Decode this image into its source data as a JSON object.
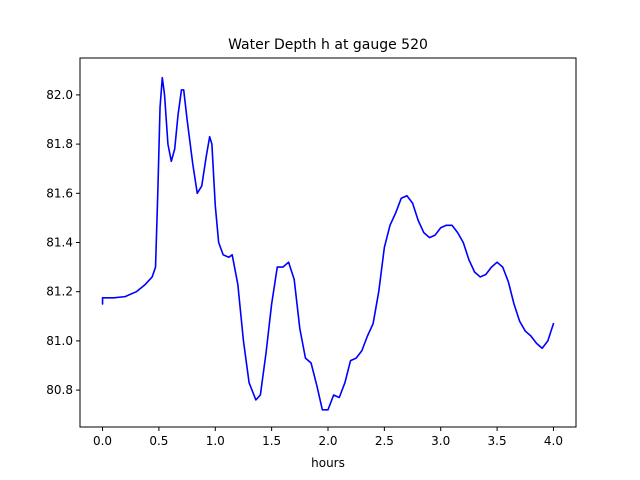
{
  "chart_data": {
    "type": "line",
    "title": "Water Depth h at gauge 520",
    "xlabel": "hours",
    "ylabel": "",
    "xlim": [
      -0.2,
      4.2
    ],
    "ylim": [
      80.65,
      82.15
    ],
    "x_ticks": [
      0.0,
      0.5,
      1.0,
      1.5,
      2.0,
      2.5,
      3.0,
      3.5,
      4.0
    ],
    "x_tick_labels": [
      "0.0",
      "0.5",
      "1.0",
      "1.5",
      "2.0",
      "2.5",
      "3.0",
      "3.5",
      "4.0"
    ],
    "y_ticks": [
      80.8,
      81.0,
      81.2,
      81.4,
      81.6,
      81.8,
      82.0
    ],
    "y_tick_labels": [
      "80.8",
      "81.0",
      "81.2",
      "81.4",
      "81.6",
      "81.8",
      "82.0"
    ],
    "grid": false,
    "series": [
      {
        "name": "",
        "color": "#0000ff",
        "points": [
          [
            0.0,
            81.15
          ],
          [
            0.0,
            81.175
          ],
          [
            0.1,
            81.175
          ],
          [
            0.2,
            81.18
          ],
          [
            0.3,
            81.2
          ],
          [
            0.38,
            81.23
          ],
          [
            0.44,
            81.26
          ],
          [
            0.47,
            81.3
          ],
          [
            0.49,
            81.6
          ],
          [
            0.51,
            81.95
          ],
          [
            0.53,
            82.07
          ],
          [
            0.55,
            82.0
          ],
          [
            0.58,
            81.8
          ],
          [
            0.61,
            81.73
          ],
          [
            0.64,
            81.78
          ],
          [
            0.67,
            81.92
          ],
          [
            0.7,
            82.02
          ],
          [
            0.72,
            82.02
          ],
          [
            0.75,
            81.9
          ],
          [
            0.8,
            81.72
          ],
          [
            0.84,
            81.6
          ],
          [
            0.88,
            81.63
          ],
          [
            0.92,
            81.75
          ],
          [
            0.95,
            81.83
          ],
          [
            0.97,
            81.8
          ],
          [
            1.0,
            81.55
          ],
          [
            1.03,
            81.4
          ],
          [
            1.07,
            81.35
          ],
          [
            1.12,
            81.34
          ],
          [
            1.15,
            81.35
          ],
          [
            1.2,
            81.23
          ],
          [
            1.25,
            81.0
          ],
          [
            1.3,
            80.83
          ],
          [
            1.36,
            80.76
          ],
          [
            1.4,
            80.78
          ],
          [
            1.45,
            80.95
          ],
          [
            1.5,
            81.15
          ],
          [
            1.55,
            81.3
          ],
          [
            1.6,
            81.3
          ],
          [
            1.65,
            81.32
          ],
          [
            1.7,
            81.25
          ],
          [
            1.75,
            81.05
          ],
          [
            1.8,
            80.93
          ],
          [
            1.85,
            80.91
          ],
          [
            1.9,
            80.82
          ],
          [
            1.95,
            80.72
          ],
          [
            2.0,
            80.72
          ],
          [
            2.05,
            80.78
          ],
          [
            2.1,
            80.77
          ],
          [
            2.15,
            80.83
          ],
          [
            2.2,
            80.92
          ],
          [
            2.25,
            80.93
          ],
          [
            2.3,
            80.96
          ],
          [
            2.35,
            81.02
          ],
          [
            2.4,
            81.07
          ],
          [
            2.45,
            81.2
          ],
          [
            2.5,
            81.38
          ],
          [
            2.55,
            81.47
          ],
          [
            2.6,
            81.52
          ],
          [
            2.65,
            81.58
          ],
          [
            2.7,
            81.59
          ],
          [
            2.75,
            81.56
          ],
          [
            2.8,
            81.49
          ],
          [
            2.85,
            81.44
          ],
          [
            2.9,
            81.42
          ],
          [
            2.95,
            81.43
          ],
          [
            3.0,
            81.46
          ],
          [
            3.05,
            81.47
          ],
          [
            3.1,
            81.47
          ],
          [
            3.15,
            81.44
          ],
          [
            3.2,
            81.4
          ],
          [
            3.25,
            81.33
          ],
          [
            3.3,
            81.28
          ],
          [
            3.35,
            81.26
          ],
          [
            3.4,
            81.27
          ],
          [
            3.45,
            81.3
          ],
          [
            3.5,
            81.32
          ],
          [
            3.55,
            81.3
          ],
          [
            3.6,
            81.24
          ],
          [
            3.65,
            81.15
          ],
          [
            3.7,
            81.08
          ],
          [
            3.75,
            81.04
          ],
          [
            3.8,
            81.02
          ],
          [
            3.85,
            80.99
          ],
          [
            3.9,
            80.97
          ],
          [
            3.95,
            81.0
          ],
          [
            4.0,
            81.07
          ]
        ]
      }
    ]
  }
}
